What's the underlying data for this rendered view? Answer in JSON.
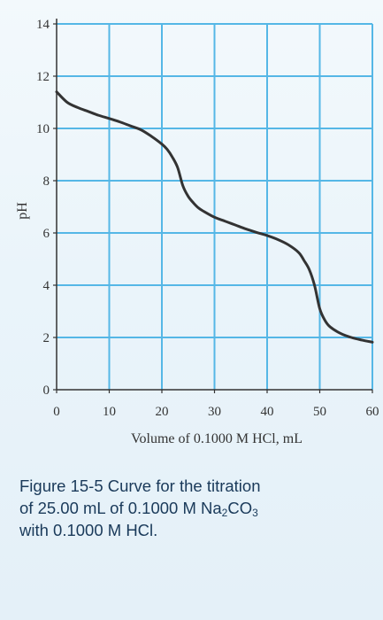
{
  "chart_data": {
    "type": "line",
    "title": "",
    "xlabel": "Volume of 0.1000 M HCl, mL",
    "ylabel": "pH",
    "xlim": [
      0,
      60
    ],
    "ylim": [
      0,
      14
    ],
    "x_ticks": [
      "0",
      "10",
      "20",
      "30",
      "40",
      "50",
      "60"
    ],
    "y_ticks": [
      "0",
      "2",
      "4",
      "6",
      "8",
      "10",
      "12",
      "14"
    ],
    "grid": true,
    "series": [
      {
        "color": "#333333",
        "x": [
          0,
          2,
          4,
          6,
          8,
          10,
          12,
          14,
          16,
          18,
          20,
          21,
          22,
          23,
          24,
          25,
          26,
          27,
          28,
          30,
          32,
          34,
          36,
          38,
          40,
          42,
          44,
          46,
          47,
          48,
          49,
          50,
          51,
          52,
          54,
          56,
          58,
          60
        ],
        "y": [
          11.4,
          11.0,
          10.8,
          10.65,
          10.5,
          10.38,
          10.25,
          10.1,
          9.95,
          9.7,
          9.4,
          9.2,
          8.9,
          8.5,
          7.8,
          7.4,
          7.15,
          6.95,
          6.82,
          6.6,
          6.45,
          6.3,
          6.15,
          6.02,
          5.9,
          5.75,
          5.55,
          5.25,
          4.95,
          4.6,
          4.0,
          3.1,
          2.65,
          2.4,
          2.15,
          2.0,
          1.9,
          1.82
        ]
      }
    ]
  },
  "caption": {
    "line1": "Figure 15-5   Curve for the titration",
    "line2_pre": "of 25.00  mL  of  0.1000  M  Na",
    "line2_sub1": "2",
    "line2_mid": "CO",
    "line2_sub2": "3",
    "line3": "with 0.1000 M HCl."
  },
  "colors": {
    "grid": "#55b7e6",
    "axis": "#333333",
    "curve": "#333333",
    "caption": "#1a3a5a"
  }
}
